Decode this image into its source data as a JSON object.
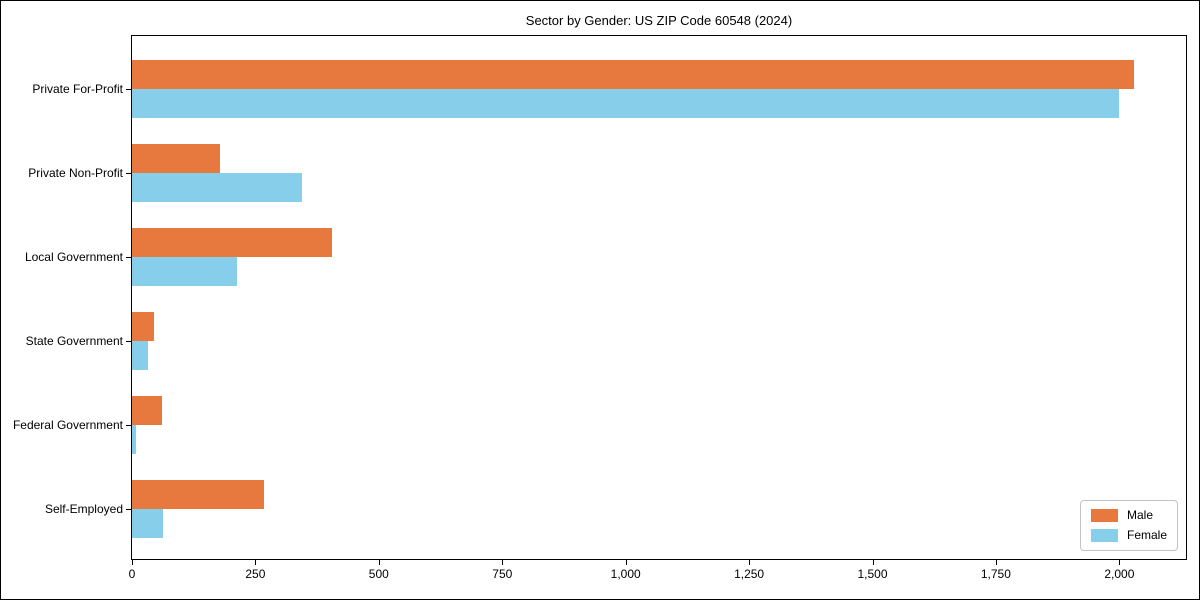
{
  "chart_data": {
    "type": "bar",
    "orientation": "horizontal",
    "title": "Sector by Gender: US ZIP Code 60548 (2024)",
    "categories": [
      "Private For-Profit",
      "Private Non-Profit",
      "Local Government",
      "State Government",
      "Federal Government",
      "Self-Employed"
    ],
    "series": [
      {
        "name": "Male",
        "color": "#e8793e",
        "values": [
          2030,
          178,
          406,
          45,
          60,
          268
        ]
      },
      {
        "name": "Female",
        "color": "#87ceeb",
        "values": [
          2000,
          344,
          212,
          32,
          8,
          62
        ]
      }
    ],
    "xlabel": "",
    "ylabel": "",
    "xlim": [
      0,
      2135
    ],
    "x_ticks": [
      0,
      250,
      500,
      750,
      1000,
      1250,
      1500,
      1750,
      2000
    ],
    "x_tick_labels": [
      "0",
      "250",
      "500",
      "750",
      "1,000",
      "1,250",
      "1,500",
      "1,750",
      "2,000"
    ],
    "grid": false,
    "legend_position": "lower right",
    "frame_color": "#000000"
  }
}
